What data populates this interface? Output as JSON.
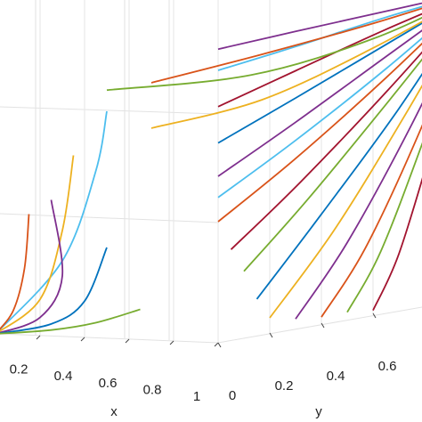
{
  "chart_data": {
    "type": "trajectories3d",
    "x_label": "x",
    "y_label": "y",
    "xlim": [
      0,
      1
    ],
    "ylim": [
      0,
      1
    ],
    "zlim": [
      0,
      1
    ],
    "xticks": [
      0.2,
      0.4,
      0.6,
      0.8,
      1
    ],
    "yticks": [
      0,
      0.2,
      0.4,
      0.6
    ],
    "grid": true,
    "series": [
      {
        "color": "#7e2f8e",
        "x": [
          1,
          1,
          1,
          1
        ],
        "y": [
          0,
          0.3,
          0.65,
          1
        ],
        "z": [
          0.97,
          0.98,
          0.99,
          1
        ]
      },
      {
        "color": "#4dbeee",
        "x": [
          1,
          1,
          1,
          1
        ],
        "y": [
          0,
          0.3,
          0.65,
          1
        ],
        "z": [
          0.9,
          0.93,
          0.97,
          1
        ]
      },
      {
        "color": "#d95319",
        "x": [
          0.7,
          0.85,
          0.95,
          1
        ],
        "y": [
          0,
          0.3,
          0.65,
          1
        ],
        "z": [
          0.85,
          0.9,
          0.95,
          1
        ]
      },
      {
        "color": "#a2142f",
        "x": [
          1,
          1,
          1,
          1
        ],
        "y": [
          0,
          0.3,
          0.65,
          1
        ],
        "z": [
          0.78,
          0.85,
          0.93,
          1
        ]
      },
      {
        "color": "#77ac30",
        "x": [
          0.5,
          0.8,
          0.95,
          1
        ],
        "y": [
          0,
          0.3,
          0.65,
          1
        ],
        "z": [
          0.82,
          0.83,
          0.9,
          1
        ]
      },
      {
        "color": "#0072bd",
        "x": [
          1,
          1,
          1,
          1
        ],
        "y": [
          0,
          0.3,
          0.65,
          1
        ],
        "z": [
          0.66,
          0.76,
          0.88,
          1
        ]
      },
      {
        "color": "#edb120",
        "x": [
          0.7,
          0.85,
          0.95,
          1
        ],
        "y": [
          0,
          0.3,
          0.65,
          1
        ],
        "z": [
          0.7,
          0.75,
          0.87,
          1
        ]
      },
      {
        "color": "#7e2f8e",
        "x": [
          1,
          1,
          1,
          1
        ],
        "y": [
          0,
          0.3,
          0.65,
          1
        ],
        "z": [
          0.55,
          0.68,
          0.84,
          1
        ]
      },
      {
        "color": "#4dbeee",
        "x": [
          1,
          1,
          1,
          1
        ],
        "y": [
          0,
          0.3,
          0.65,
          1
        ],
        "z": [
          0.48,
          0.62,
          0.8,
          1
        ]
      },
      {
        "color": "#d95319",
        "x": [
          1,
          1,
          1,
          1
        ],
        "y": [
          0,
          0.3,
          0.65,
          1
        ],
        "z": [
          0.4,
          0.56,
          0.77,
          1
        ]
      },
      {
        "color": "#a2142f",
        "x": [
          1,
          1,
          1,
          1
        ],
        "y": [
          0.05,
          0.32,
          0.66,
          1
        ],
        "z": [
          0.3,
          0.48,
          0.73,
          1
        ]
      },
      {
        "color": "#77ac30",
        "x": [
          1,
          1,
          1,
          1
        ],
        "y": [
          0.1,
          0.35,
          0.67,
          1
        ],
        "z": [
          0.22,
          0.42,
          0.7,
          1
        ]
      },
      {
        "color": "#0072bd",
        "x": [
          1,
          1,
          1,
          1
        ],
        "y": [
          0.15,
          0.4,
          0.7,
          1
        ],
        "z": [
          0.12,
          0.36,
          0.66,
          1
        ]
      },
      {
        "color": "#edb120",
        "x": [
          1,
          1,
          1,
          1
        ],
        "y": [
          0.2,
          0.45,
          0.72,
          1
        ],
        "z": [
          0.05,
          0.3,
          0.63,
          1
        ]
      },
      {
        "color": "#7e2f8e",
        "x": [
          1,
          1,
          1,
          1
        ],
        "y": [
          0.3,
          0.5,
          0.75,
          1
        ],
        "z": [
          0.03,
          0.25,
          0.6,
          1
        ]
      },
      {
        "color": "#d95319",
        "x": [
          1,
          1,
          1,
          1
        ],
        "y": [
          0.4,
          0.57,
          0.78,
          1
        ],
        "z": [
          0.02,
          0.22,
          0.57,
          1
        ]
      },
      {
        "color": "#77ac30",
        "x": [
          1,
          1,
          1,
          1
        ],
        "y": [
          0.5,
          0.63,
          0.8,
          1
        ],
        "z": [
          0.02,
          0.2,
          0.55,
          1
        ]
      },
      {
        "color": "#a2142f",
        "x": [
          1,
          1,
          1,
          1
        ],
        "y": [
          0.6,
          0.7,
          0.83,
          1
        ],
        "z": [
          0.01,
          0.18,
          0.52,
          1
        ]
      },
      {
        "color": "#4dbeee",
        "x": [
          0.5,
          0.45,
          0.3,
          0
        ],
        "y": [
          0,
          0,
          0,
          0
        ],
        "z": [
          0.75,
          0.55,
          0.25,
          0
        ]
      },
      {
        "color": "#edb120",
        "x": [
          0.35,
          0.3,
          0.2,
          0
        ],
        "y": [
          0,
          0,
          0,
          0
        ],
        "z": [
          0.6,
          0.35,
          0.12,
          0
        ]
      },
      {
        "color": "#7e2f8e",
        "x": [
          0.25,
          0.3,
          0.2,
          0
        ],
        "y": [
          0,
          0,
          0,
          0
        ],
        "z": [
          0.45,
          0.2,
          0.06,
          0
        ]
      },
      {
        "color": "#0072bd",
        "x": [
          0.5,
          0.4,
          0.25,
          0
        ],
        "y": [
          0,
          0,
          0,
          0
        ],
        "z": [
          0.3,
          0.12,
          0.04,
          0
        ]
      },
      {
        "color": "#d95319",
        "x": [
          0.15,
          0.13,
          0.08,
          0
        ],
        "y": [
          0,
          0,
          0,
          0
        ],
        "z": [
          0.4,
          0.22,
          0.08,
          0
        ]
      },
      {
        "color": "#77ac30",
        "x": [
          0.65,
          0.45,
          0.25,
          0
        ],
        "y": [
          0,
          0,
          0,
          0
        ],
        "z": [
          0.1,
          0.05,
          0.02,
          0
        ]
      }
    ]
  }
}
